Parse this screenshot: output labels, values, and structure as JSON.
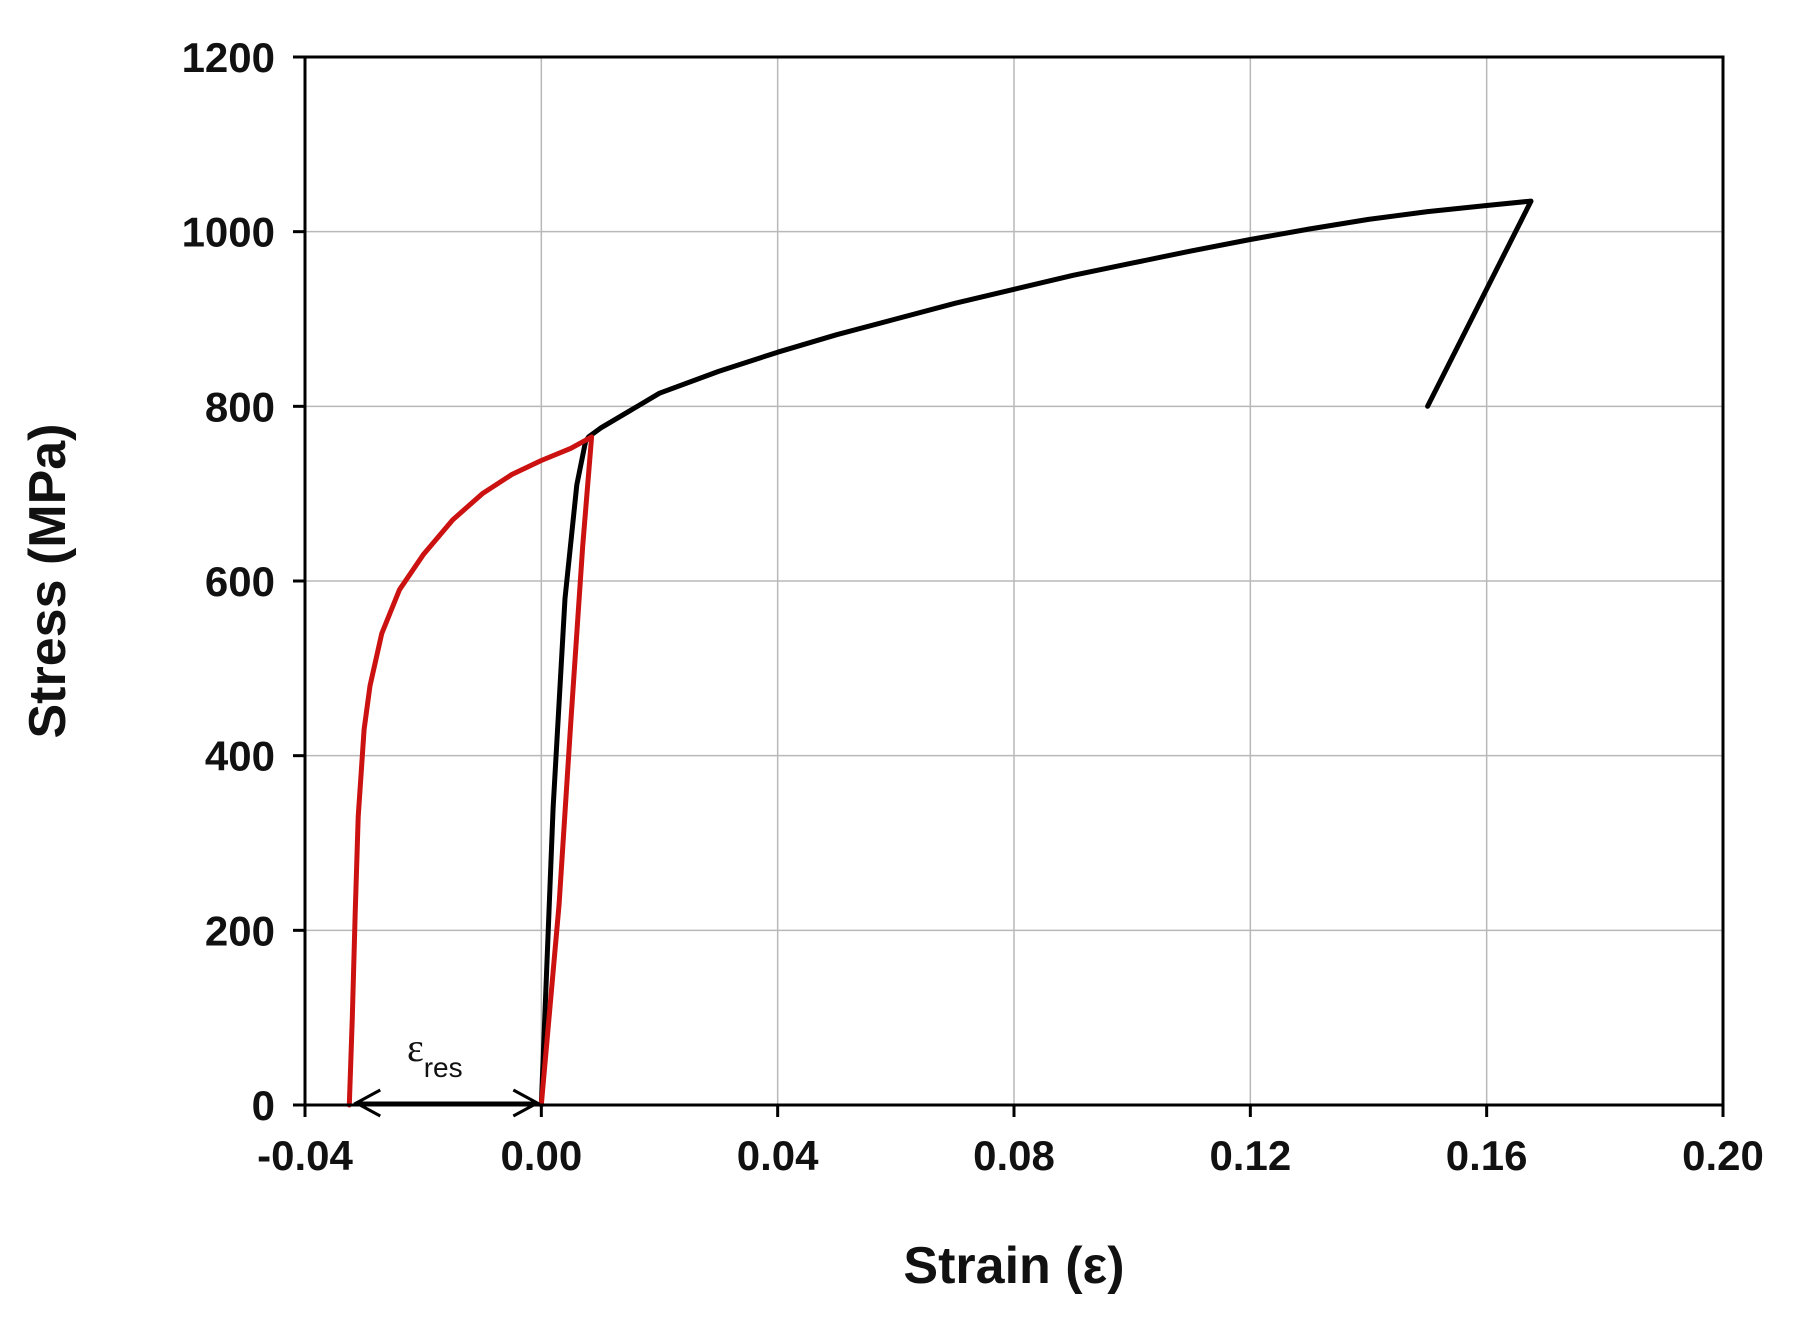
{
  "chart_data": {
    "type": "line",
    "title": "",
    "xlabel": "Strain (ε)",
    "ylabel": "Stress (MPa)",
    "xlim": [
      -0.04,
      0.2
    ],
    "ylim": [
      0,
      1200
    ],
    "xticks": [
      -0.04,
      0.0,
      0.04,
      0.08,
      0.12,
      0.16,
      0.2
    ],
    "xtick_labels": [
      "-0.04",
      "0.00",
      "0.04",
      "0.08",
      "0.12",
      "0.16",
      "0.20"
    ],
    "yticks": [
      0,
      200,
      400,
      600,
      800,
      1000,
      1200
    ],
    "ytick_labels": [
      "0",
      "200",
      "400",
      "600",
      "800",
      "1000",
      "1200"
    ],
    "grid": true,
    "series": [
      {
        "color": "#000000",
        "x": [
          0.0,
          0.002,
          0.004,
          0.006,
          0.0075,
          0.008,
          0.01,
          0.015,
          0.02,
          0.03,
          0.04,
          0.05,
          0.06,
          0.07,
          0.08,
          0.09,
          0.1,
          0.11,
          0.12,
          0.13,
          0.14,
          0.15,
          0.16,
          0.1675,
          0.15
        ],
        "y": [
          0,
          340,
          580,
          710,
          760,
          765,
          775,
          795,
          815,
          840,
          862,
          882,
          900,
          918,
          934,
          950,
          964,
          978,
          991,
          1003,
          1014,
          1023,
          1030,
          1035,
          800
        ]
      },
      {
        "color": "#cc1111",
        "x": [
          0.0,
          0.003,
          0.005,
          0.007,
          0.0085,
          0.005,
          0.0,
          -0.005,
          -0.01,
          -0.015,
          -0.02,
          -0.024,
          -0.027,
          -0.029,
          -0.03,
          -0.031,
          -0.0315,
          -0.032,
          -0.0325
        ],
        "y": [
          0,
          230,
          440,
          640,
          765,
          752,
          738,
          722,
          700,
          670,
          630,
          590,
          540,
          480,
          430,
          330,
          220,
          100,
          0
        ]
      }
    ],
    "annotations": [
      {
        "text": "ε",
        "subscript": "res",
        "arrow_x": [
          -0.032,
          0.0
        ],
        "arrow_y": 0
      }
    ]
  }
}
